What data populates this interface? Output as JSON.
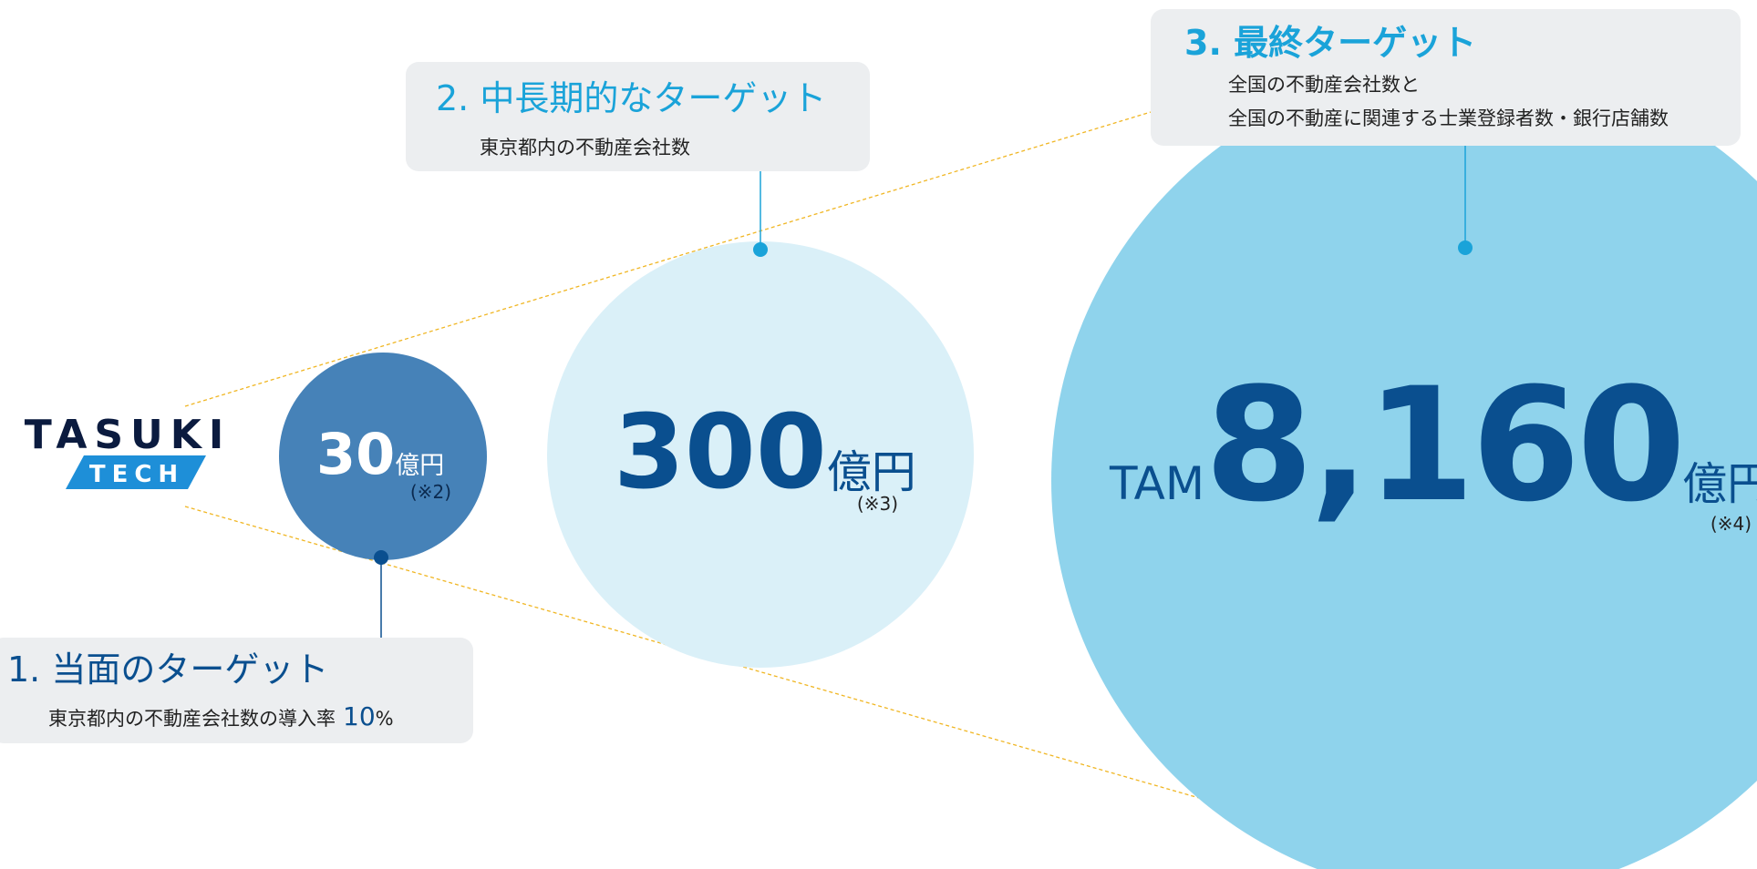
{
  "logo": {
    "top": "TASUKI",
    "bottom": "TECH"
  },
  "targets": [
    {
      "heading": "1. 当面のターゲット",
      "lines": [
        "東京都内の不動産会社数の導入率"
      ],
      "rate": "10",
      "rate_unit": "%"
    },
    {
      "heading": "2. 中長期的なターゲット",
      "lines": [
        "東京都内の不動産会社数"
      ]
    },
    {
      "heading": "3. 最終ターゲット",
      "lines": [
        "全国の不動産会社数と",
        "全国の不動産に関連する士業登録者数・銀行店舗数"
      ]
    }
  ],
  "markets": [
    {
      "amount": "30",
      "unit": "億円",
      "note": "(※2)"
    },
    {
      "amount": "300",
      "unit": "億円",
      "note": "(※3)"
    },
    {
      "prefix": "TAM",
      "amount": "8,160",
      "unit": "億円",
      "note": "(※4)"
    }
  ]
}
